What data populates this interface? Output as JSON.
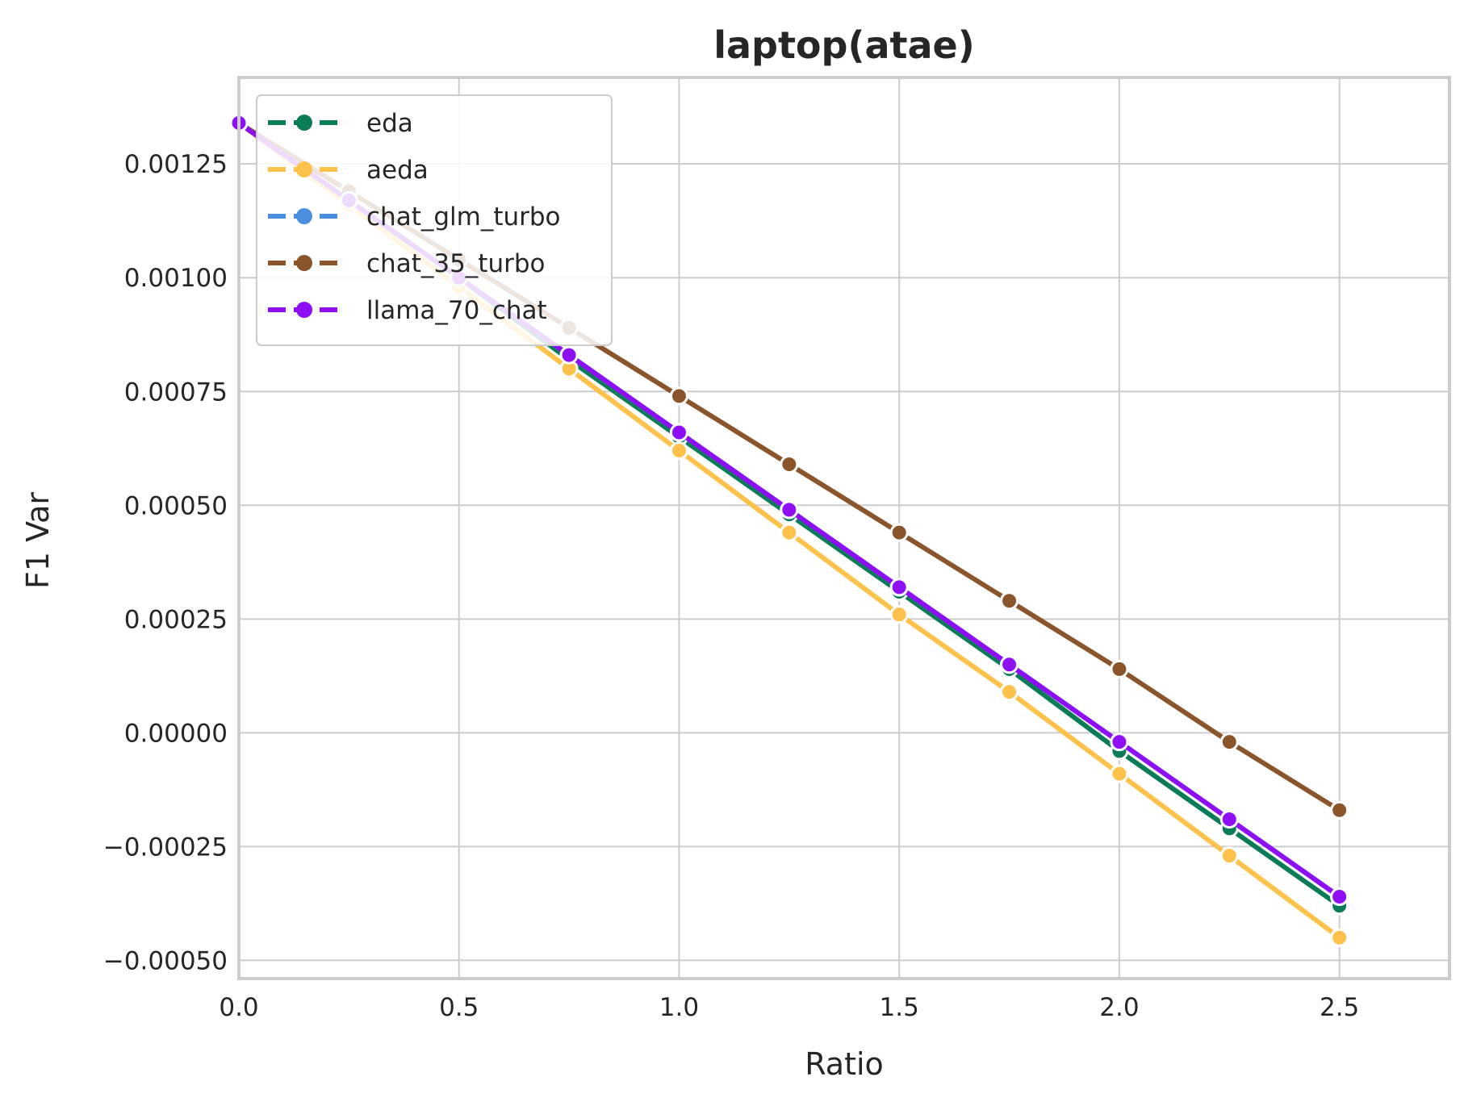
{
  "chart_data": {
    "type": "line",
    "title": "laptop(atae)",
    "xlabel": "Ratio",
    "ylabel": "F1 Var",
    "xlim": [
      0.0,
      2.75
    ],
    "ylim": [
      -0.00054,
      0.00144
    ],
    "xticks": [
      0.0,
      0.5,
      1.0,
      1.5,
      2.0,
      2.5
    ],
    "xtick_labels": [
      "0.0",
      "0.5",
      "1.0",
      "1.5",
      "2.0",
      "2.5"
    ],
    "yticks": [
      -0.0005,
      -0.00025,
      0.0,
      0.00025,
      0.0005,
      0.00075,
      0.001,
      0.00125
    ],
    "ytick_labels": [
      "−0.00050",
      "−0.00025",
      "0.00000",
      "0.00025",
      "0.00050",
      "0.00075",
      "0.00100",
      "0.00125"
    ],
    "grid": true,
    "legend_position": "top-left",
    "x": [
      0.0,
      0.25,
      0.5,
      0.75,
      1.0,
      1.25,
      1.5,
      1.75,
      2.0,
      2.25,
      2.5
    ],
    "series": [
      {
        "name": "eda",
        "color": "#0b7c57",
        "values": [
          0.00134,
          0.00117,
          0.001,
          0.00082,
          0.00065,
          0.00048,
          0.00031,
          0.00014,
          -4e-05,
          -0.00021,
          -0.00038
        ]
      },
      {
        "name": "aeda",
        "color": "#fec14c",
        "values": [
          0.00134,
          0.00116,
          0.00098,
          0.0008,
          0.00062,
          0.00044,
          0.00026,
          9e-05,
          -9e-05,
          -0.00027,
          -0.00045
        ]
      },
      {
        "name": "chat_glm_turbo",
        "color": "#4a8fdd",
        "values": [
          0.00134,
          0.00117,
          0.001,
          0.00083,
          0.00066,
          0.00049,
          0.00032,
          0.00015,
          -2e-05,
          -0.00019,
          -0.00036
        ]
      },
      {
        "name": "chat_35_turbo",
        "color": "#8a552a",
        "values": [
          0.00134,
          0.00119,
          0.00104,
          0.00089,
          0.00074,
          0.00059,
          0.00044,
          0.00029,
          0.00014,
          -2e-05,
          -0.00017
        ]
      },
      {
        "name": "llama_70_chat",
        "color": "#8e0ff3",
        "values": [
          0.00134,
          0.00117,
          0.001,
          0.00083,
          0.00066,
          0.00049,
          0.00032,
          0.00015,
          -2e-05,
          -0.00019,
          -0.00036
        ]
      }
    ]
  }
}
